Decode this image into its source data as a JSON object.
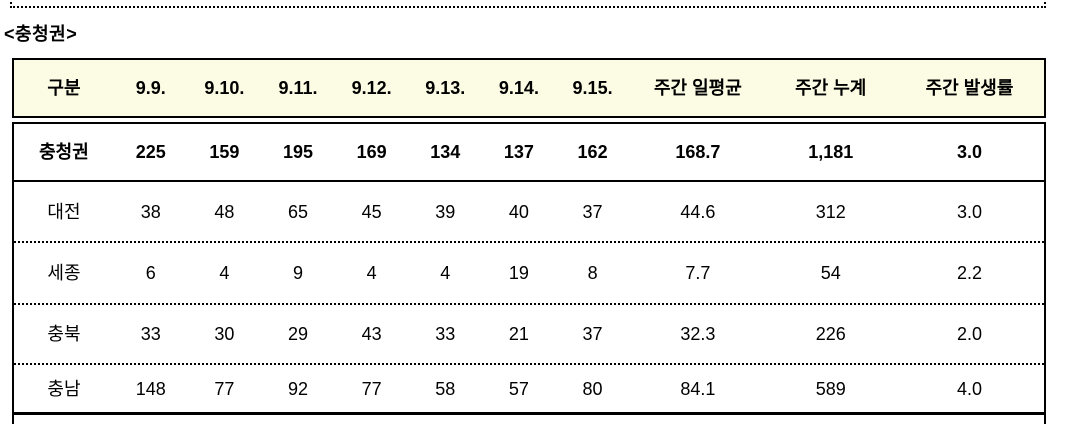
{
  "page": {
    "title": "<충청권>"
  },
  "table": {
    "header": [
      "구분",
      "9.9.",
      "9.10.",
      "9.11.",
      "9.12.",
      "9.13.",
      "9.14.",
      "9.15.",
      "주간 일평균",
      "주간 누계",
      "주간 발생률"
    ],
    "rows": [
      {
        "region": "충청권",
        "values": [
          "225",
          "159",
          "195",
          "169",
          "134",
          "137",
          "162",
          "168.7",
          "1,181",
          "3.0"
        ],
        "emphasis": true
      },
      {
        "region": "대전",
        "values": [
          "38",
          "48",
          "65",
          "45",
          "39",
          "40",
          "37",
          "44.6",
          "312",
          "3.0"
        ],
        "emphasis": false
      },
      {
        "region": "세종",
        "values": [
          "6",
          "4",
          "9",
          "4",
          "4",
          "19",
          "8",
          "7.7",
          "54",
          "2.2"
        ],
        "emphasis": false
      },
      {
        "region": "충북",
        "values": [
          "33",
          "30",
          "29",
          "43",
          "33",
          "21",
          "37",
          "32.3",
          "226",
          "2.0"
        ],
        "emphasis": false
      },
      {
        "region": "충남",
        "values": [
          "148",
          "77",
          "92",
          "77",
          "58",
          "57",
          "80",
          "84.1",
          "589",
          "4.0"
        ],
        "emphasis": false
      }
    ],
    "colors": {
      "header_background": "#FCFCE4",
      "border": "#000000"
    }
  },
  "chart_data": {
    "type": "table",
    "title": "<충청권>",
    "columns": [
      "구분",
      "9.9.",
      "9.10.",
      "9.11.",
      "9.12.",
      "9.13.",
      "9.14.",
      "9.15.",
      "주간 일평균",
      "주간 누계",
      "주간 발생률"
    ],
    "rows": [
      [
        "충청권",
        225,
        159,
        195,
        169,
        134,
        137,
        162,
        168.7,
        1181,
        3.0
      ],
      [
        "대전",
        38,
        48,
        65,
        45,
        39,
        40,
        37,
        44.6,
        312,
        3.0
      ],
      [
        "세종",
        6,
        4,
        9,
        4,
        4,
        19,
        8,
        7.7,
        54,
        2.2
      ],
      [
        "충북",
        33,
        30,
        29,
        43,
        33,
        21,
        37,
        32.3,
        226,
        2.0
      ],
      [
        "충남",
        148,
        77,
        92,
        77,
        58,
        57,
        80,
        84.1,
        589,
        4.0
      ]
    ]
  }
}
